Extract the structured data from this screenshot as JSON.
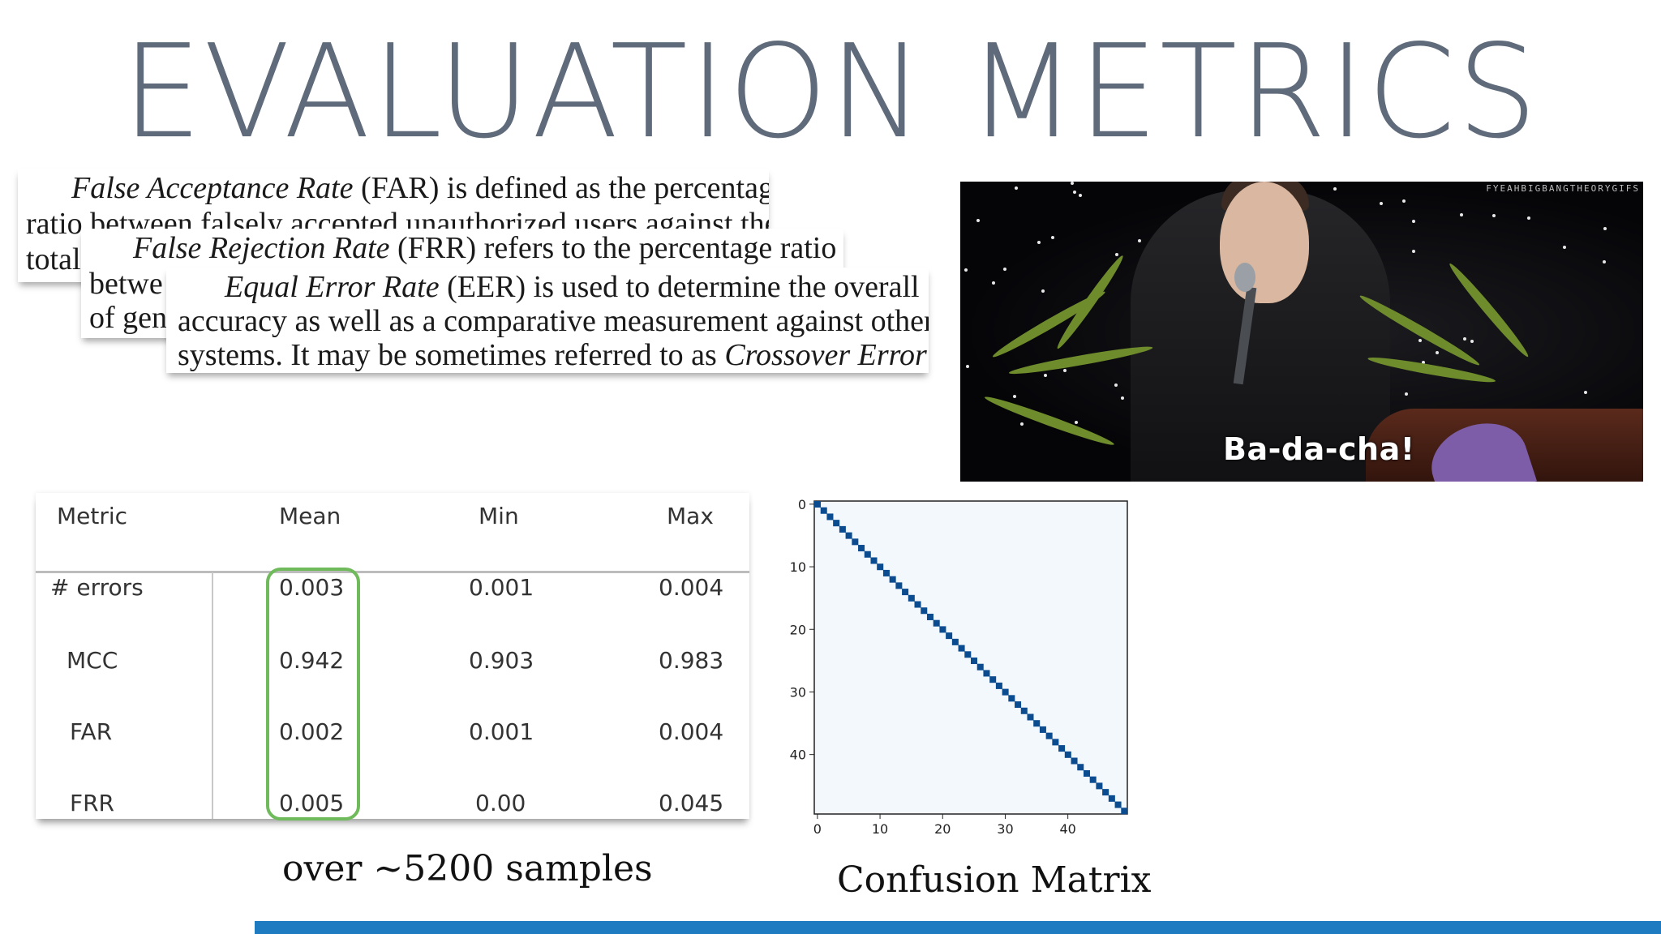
{
  "slide": {
    "title": "EVALUATION METRICS"
  },
  "clippings": {
    "far": {
      "line1_term": "False Acceptance Rate",
      "line1_rest": " (FAR) is defined as the percentage",
      "line2": "ratio between falsely accepted unauthorized users against the",
      "line3": "total"
    },
    "frr": {
      "line1_term": "False Rejection Rate",
      "line1_rest": " (FRR) refers to the percentage ratio",
      "line2": "betwe",
      "line3": "of gen"
    },
    "eer": {
      "line1_term": "Equal Error Rate",
      "line1_rest": " (EER) is used to determine the overall",
      "line2": "accuracy as well as a comparative measurement against other",
      "line3_start": "systems. It may be sometimes referred to as ",
      "line3_term": "Crossover Error"
    }
  },
  "gif": {
    "caption": "Ba-da-cha!",
    "watermark": "FYEAHBIGBANGTHEORYGIFS"
  },
  "metrics_table": {
    "headers": [
      "Metric",
      "Mean",
      "Min",
      "Max"
    ],
    "rows": [
      {
        "metric": "# errors",
        "mean": "0.003",
        "min": "0.001",
        "max": "0.004"
      },
      {
        "metric": "MCC",
        "mean": "0.942",
        "min": "0.903",
        "max": "0.983"
      },
      {
        "metric": "FAR",
        "mean": "0.002",
        "min": "0.001",
        "max": "0.004"
      },
      {
        "metric": "FRR",
        "mean": "0.005",
        "min": "0.00",
        "max": "0.045"
      }
    ],
    "highlight_color": "#6fba5b"
  },
  "samples_note": "over ~5200 samples",
  "confusion_matrix": {
    "caption": "Confusion Matrix",
    "size": 50,
    "x_ticks": [
      "0",
      "10",
      "20",
      "30",
      "40"
    ],
    "y_ticks": [
      "0",
      "10",
      "20",
      "30",
      "40"
    ],
    "background_color": "#f3f8fd",
    "diagonal_color": "#0b4b8f"
  },
  "accent_bar_color": "#1e7bc2"
}
